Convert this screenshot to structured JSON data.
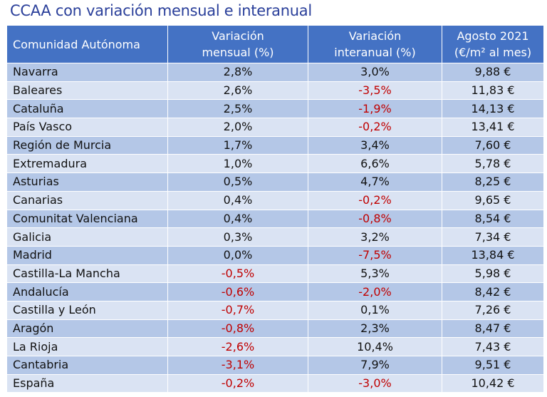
{
  "title": "CCAA con variación mensual e interanual",
  "colors": {
    "header_bg": "#4472c4",
    "row_dark": "#b4c7e7",
    "row_light": "#dae3f3",
    "negative": "#c00000",
    "title": "#2a3f9a"
  },
  "header": {
    "col1": "Comunidad Autónoma",
    "col2_line1": "Variación",
    "col2_line2": "mensual (%)",
    "col3_line1": "Variación",
    "col3_line2": "interanual (%)",
    "col4_line1": "Agosto 2021",
    "col4_line2": "(€/m² al mes)"
  },
  "rows": [
    {
      "name": "Navarra",
      "mensual": "2,8%",
      "interanual": "3,0%",
      "precio": "9,88 €"
    },
    {
      "name": "Baleares",
      "mensual": "2,6%",
      "interanual": "-3,5%",
      "precio": "11,83 €"
    },
    {
      "name": "Cataluña",
      "mensual": "2,5%",
      "interanual": "-1,9%",
      "precio": "14,13 €"
    },
    {
      "name": "País Vasco",
      "mensual": "2,0%",
      "interanual": "-0,2%",
      "precio": "13,41 €"
    },
    {
      "name": "Región de Murcia",
      "mensual": "1,7%",
      "interanual": "3,4%",
      "precio": "7,60 €"
    },
    {
      "name": "Extremadura",
      "mensual": "1,0%",
      "interanual": "6,6%",
      "precio": "5,78 €"
    },
    {
      "name": "Asturias",
      "mensual": "0,5%",
      "interanual": "4,7%",
      "precio": "8,25 €"
    },
    {
      "name": "Canarias",
      "mensual": "0,4%",
      "interanual": "-0,2%",
      "precio": "9,65 €"
    },
    {
      "name": "Comunitat Valenciana",
      "mensual": "0,4%",
      "interanual": "-0,8%",
      "precio": "8,54 €"
    },
    {
      "name": "Galicia",
      "mensual": "0,3%",
      "interanual": "3,2%",
      "precio": "7,34 €"
    },
    {
      "name": "Madrid",
      "mensual": "0,0%",
      "interanual": "-7,5%",
      "precio": "13,84 €"
    },
    {
      "name": "Castilla-La Mancha",
      "mensual": "-0,5%",
      "interanual": "5,3%",
      "precio": "5,98 €"
    },
    {
      "name": "Andalucía",
      "mensual": "-0,6%",
      "interanual": "-2,0%",
      "precio": "8,42 €"
    },
    {
      "name": "Castilla y León",
      "mensual": "-0,7%",
      "interanual": "0,1%",
      "precio": "7,26 €"
    },
    {
      "name": "Aragón",
      "mensual": "-0,8%",
      "interanual": "2,3%",
      "precio": "8,47 €"
    },
    {
      "name": "La Rioja",
      "mensual": "-2,6%",
      "interanual": "10,4%",
      "precio": "7,43 €"
    },
    {
      "name": "Cantabria",
      "mensual": "-3,1%",
      "interanual": "7,9%",
      "precio": "9,51 €"
    },
    {
      "name": "España",
      "mensual": "-0,2%",
      "interanual": "-3,0%",
      "precio": "10,42 €"
    }
  ]
}
